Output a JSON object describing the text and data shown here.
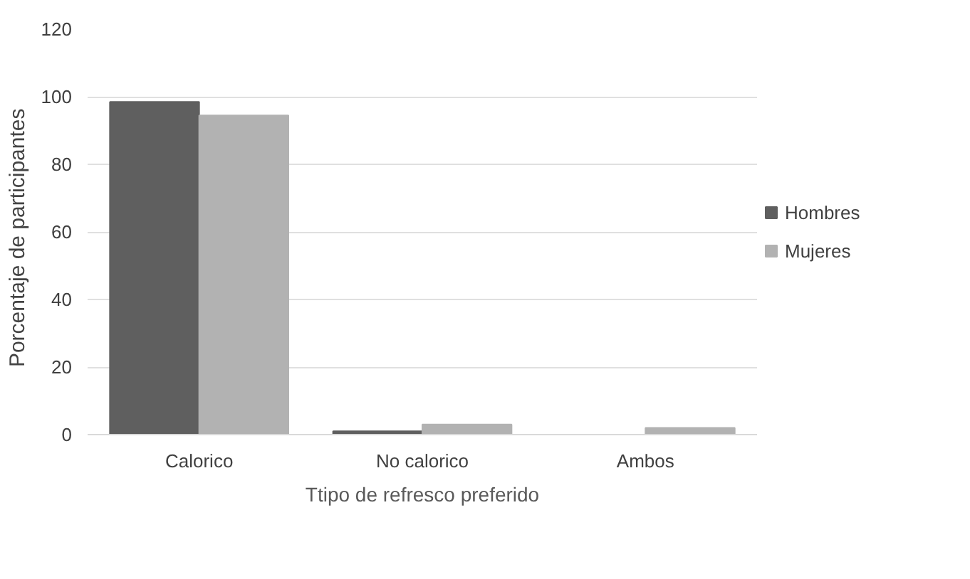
{
  "chart_data": {
    "type": "bar",
    "xlabel": "Ttipo de refresco preferido",
    "ylabel": "Porcentaje  de  participantes",
    "categories": [
      "Calorico",
      "No calorico",
      "Ambos"
    ],
    "series": [
      {
        "name": "Hombres",
        "color": "#5f5f5f",
        "values": [
          98.5,
          1,
          0
        ]
      },
      {
        "name": "Mujeres",
        "color": "#b2b2b2",
        "values": [
          94.5,
          3,
          2
        ]
      }
    ],
    "ylim": [
      0,
      120
    ],
    "yticks": [
      0,
      20,
      40,
      60,
      80,
      100,
      120
    ],
    "grid": "y",
    "legend": "right"
  }
}
